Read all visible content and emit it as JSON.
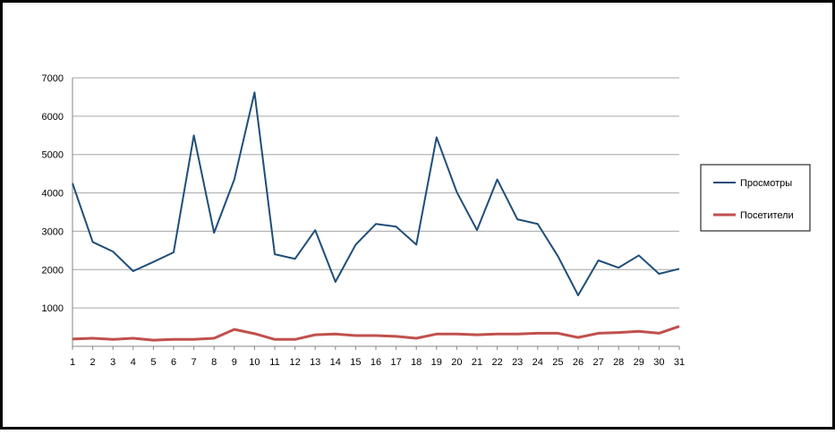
{
  "chart_data": {
    "type": "line",
    "x": [
      1,
      2,
      3,
      4,
      5,
      6,
      7,
      8,
      9,
      10,
      11,
      12,
      13,
      14,
      15,
      16,
      17,
      18,
      19,
      20,
      21,
      22,
      23,
      24,
      25,
      26,
      27,
      28,
      29,
      30,
      31
    ],
    "xlim": [
      1,
      31
    ],
    "xticks": [
      1,
      2,
      3,
      4,
      5,
      6,
      7,
      8,
      9,
      10,
      11,
      12,
      13,
      14,
      15,
      16,
      17,
      18,
      19,
      20,
      21,
      22,
      23,
      24,
      25,
      26,
      27,
      28,
      29,
      30,
      31
    ],
    "ylim": [
      0,
      7000
    ],
    "yticks": [
      1000,
      2000,
      3000,
      4000,
      5000,
      6000,
      7000
    ],
    "grid": true,
    "legend": "right",
    "series": [
      {
        "name": "Просмотры",
        "color": "#1f4e79",
        "values": [
          4250,
          2720,
          2470,
          1960,
          2200,
          2450,
          5500,
          2960,
          4350,
          6620,
          2400,
          2280,
          3030,
          1680,
          2650,
          3190,
          3120,
          2650,
          5450,
          4020,
          3030,
          4350,
          3310,
          3190,
          2350,
          1330,
          2240,
          2050,
          2370,
          1890,
          2020
        ]
      },
      {
        "name": "Посетители",
        "color": "#c0504d",
        "values": [
          190,
          210,
          180,
          210,
          160,
          180,
          180,
          210,
          440,
          330,
          180,
          180,
          300,
          320,
          280,
          280,
          260,
          210,
          320,
          320,
          300,
          320,
          320,
          340,
          340,
          230,
          340,
          360,
          390,
          340,
          520
        ]
      }
    ]
  }
}
